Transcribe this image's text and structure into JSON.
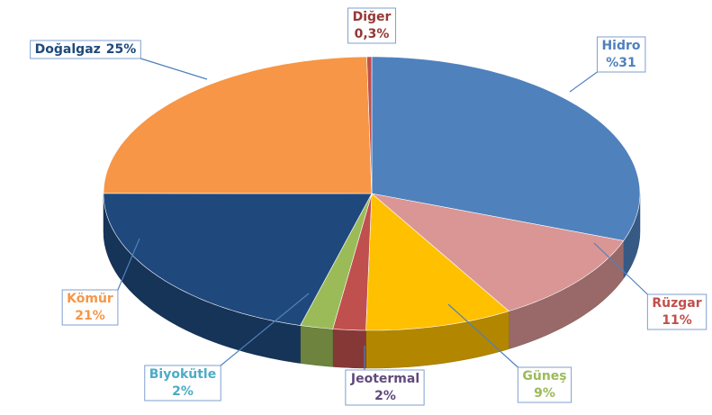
{
  "chart_data": {
    "type": "pie3d",
    "categories": [
      "Hidro",
      "Rüzgar",
      "Güneş",
      "Jeotermal",
      "Biyokütle",
      "Kömür",
      "Doğalgaz",
      "Diğer"
    ],
    "values": [
      31,
      11,
      9,
      2,
      2,
      21,
      25,
      0.3
    ],
    "value_labels": [
      "%31",
      "11%",
      "9%",
      "2%",
      "2%",
      "21%",
      "25%",
      "0,3%"
    ],
    "colors": [
      "#4f81bd",
      "#d99694",
      "#ffc000",
      "#c0504d",
      "#9bbb59",
      "#1f497d",
      "#f79646",
      "#c0504d"
    ],
    "label_colors": [
      "#4f81bd",
      "#c0504d",
      "#9bbb59",
      "#604a7b",
      "#4bacc6",
      "#f79646",
      "#1f497d",
      "#953735"
    ]
  }
}
